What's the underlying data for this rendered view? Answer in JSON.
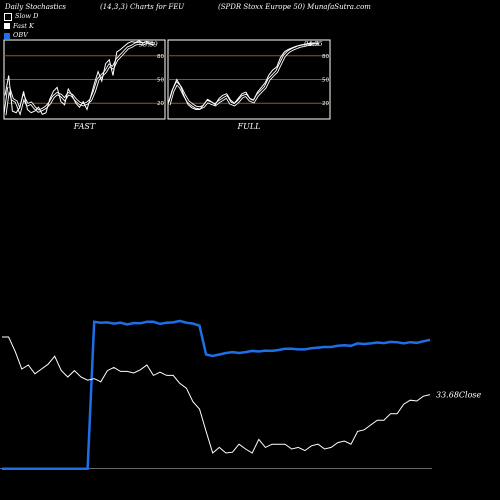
{
  "header": {
    "left": "Daily Stochastics",
    "mid": "(14,3,3) Charts for FEU",
    "right": "(SPDR Stoxx Europe   50) MunafaSutra.com"
  },
  "legend": [
    {
      "label": "Slow  D",
      "color": "#000000",
      "border": "#ffffff"
    },
    {
      "label": "Fast K",
      "color": "#ffffff",
      "border": "#ffffff"
    },
    {
      "label": "OBV",
      "color": "#1e6ee8",
      "border": "#1e6ee8"
    }
  ],
  "colors": {
    "grid_line": "#8b5a12",
    "obv": "#1e6ee8",
    "price": "#ffffff",
    "panel_border": "#ffffff"
  },
  "chart_data": [
    {
      "type": "line",
      "title": "FAST",
      "ylim": [
        0,
        100
      ],
      "yticks": [
        20,
        50,
        80
      ],
      "last_label": "93.59",
      "series": [
        {
          "name": "Slow  D",
          "values": [
            5,
            40,
            25,
            22,
            10,
            28,
            18,
            20,
            14,
            10,
            12,
            15,
            20,
            28,
            32,
            30,
            25,
            32,
            30,
            24,
            20,
            18,
            20,
            24,
            35,
            50,
            55,
            60,
            68,
            65,
            75,
            80,
            85,
            90,
            92,
            95,
            96,
            95,
            97,
            96,
            95
          ]
        },
        {
          "name": "Fast K",
          "values": [
            30,
            55,
            10,
            8,
            15,
            35,
            12,
            8,
            10,
            15,
            6,
            8,
            25,
            35,
            40,
            22,
            18,
            38,
            30,
            20,
            15,
            22,
            12,
            28,
            45,
            60,
            48,
            70,
            75,
            55,
            85,
            88,
            92,
            96,
            98,
            97,
            99,
            96,
            98,
            95,
            94
          ]
        }
      ]
    },
    {
      "type": "line",
      "title": "FULL",
      "ylim": [
        0,
        100
      ],
      "yticks": [
        20,
        50,
        80
      ],
      "last_label": "94.75",
      "series": [
        {
          "name": "Slow  D",
          "values": [
            18,
            35,
            45,
            40,
            30,
            22,
            18,
            15,
            14,
            16,
            22,
            20,
            18,
            22,
            25,
            28,
            20,
            18,
            22,
            28,
            30,
            24,
            22,
            30,
            35,
            40,
            50,
            55,
            60,
            70,
            80,
            85,
            88,
            90,
            92,
            93,
            94,
            95,
            95,
            95
          ]
        },
        {
          "name": "Fast K",
          "values": [
            22,
            38,
            50,
            42,
            28,
            18,
            14,
            12,
            12,
            18,
            25,
            22,
            18,
            26,
            30,
            32,
            24,
            20,
            26,
            32,
            34,
            26,
            24,
            34,
            40,
            46,
            56,
            62,
            66,
            78,
            85,
            88,
            90,
            92,
            93,
            94,
            95,
            95,
            96,
            95
          ]
        }
      ]
    },
    {
      "type": "line",
      "title": "",
      "close_label": "33.68Close",
      "series": [
        {
          "name": "Price",
          "values": [
            45.0,
            45.0,
            43.2,
            41.0,
            41.5,
            40.4,
            41.0,
            41.6,
            42.6,
            40.8,
            40.0,
            40.8,
            40.0,
            39.6,
            39.8,
            39.4,
            40.8,
            41.2,
            40.7,
            40.7,
            40.5,
            40.9,
            41.5,
            40.2,
            40.6,
            40.2,
            40.2,
            39.2,
            38.6,
            36.9,
            36.0,
            33.2,
            30.5,
            31.2,
            30.5,
            30.6,
            31.6,
            31.0,
            30.5,
            32.2,
            31.2,
            31.6,
            31.6,
            31.6,
            31.0,
            31.2,
            30.8,
            31.4,
            31.6,
            31.0,
            31.2,
            31.8,
            32.0,
            31.6,
            33.2,
            33.4,
            34.0,
            34.6,
            34.6,
            35.4,
            35.4,
            36.6,
            37.1,
            37.0,
            37.6,
            37.8
          ]
        },
        {
          "name": "OBV",
          "values": [
            -26.6,
            -26.6,
            -26.6,
            -26.6,
            -26.6,
            -26.6,
            -26.6,
            -26.6,
            -26.6,
            -26.6,
            -26.6,
            -26.6,
            -26.6,
            -26.6,
            22.4,
            22.1,
            22.2,
            21.8,
            22.1,
            21.5,
            22.0,
            21.9,
            22.4,
            22.4,
            21.7,
            22.1,
            22.2,
            22.7,
            22.1,
            21.8,
            21.1,
            11.5,
            11.0,
            11.5,
            12.0,
            12.3,
            12.0,
            12.3,
            12.7,
            12.5,
            12.8,
            12.7,
            13.0,
            13.4,
            13.4,
            13.2,
            13.2,
            13.6,
            13.8,
            14.0,
            14.0,
            14.4,
            14.6,
            14.4,
            15.2,
            15.0,
            15.2,
            15.5,
            15.3,
            15.7,
            15.6,
            15.2,
            15.6,
            15.4,
            15.9,
            16.4
          ]
        }
      ]
    }
  ]
}
